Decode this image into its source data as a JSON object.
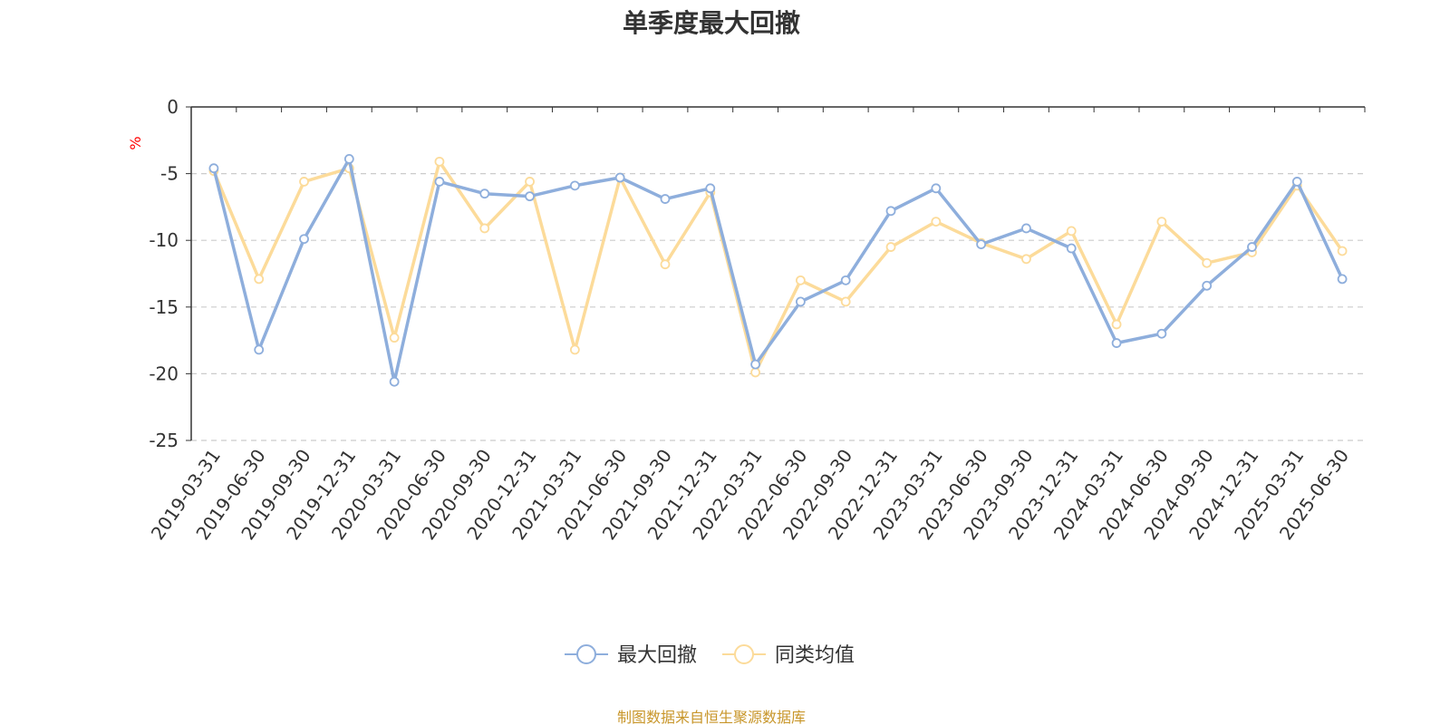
{
  "page": {
    "source_note": "制图数据来自恒生聚源数据库"
  },
  "colors": {
    "series_max_drawdown": "#8eaedc",
    "series_peer_avg": "#fcdb9a",
    "axis": "#333333",
    "grid": "#cccccc",
    "ylabel": "#ff0000",
    "source_note": "#c8962a"
  },
  "chart_data": {
    "type": "line",
    "title": "单季度最大回撤",
    "xlabel": "",
    "ylabel": "%",
    "ylim": [
      -25,
      0
    ],
    "yticks": [
      0,
      -5,
      -10,
      -15,
      -20,
      -25
    ],
    "grid": "horizontal-dashed",
    "legend_position": "bottom-center",
    "categories": [
      "2019-03-31",
      "2019-06-30",
      "2019-09-30",
      "2019-12-31",
      "2020-03-31",
      "2020-06-30",
      "2020-09-30",
      "2020-12-31",
      "2021-03-31",
      "2021-06-30",
      "2021-09-30",
      "2021-12-31",
      "2022-03-31",
      "2022-06-30",
      "2022-09-30",
      "2022-12-31",
      "2023-03-31",
      "2023-06-30",
      "2023-09-30",
      "2023-12-31",
      "2024-03-31",
      "2024-06-30",
      "2024-09-30",
      "2024-12-31",
      "2025-03-31",
      "2025-06-30"
    ],
    "series": [
      {
        "name": "最大回撤",
        "color": "#8eaedc",
        "values": [
          -4.6,
          -18.2,
          -9.9,
          -3.9,
          -20.6,
          -5.6,
          -6.5,
          -6.7,
          -5.9,
          -5.3,
          -6.9,
          -6.1,
          -19.3,
          -14.6,
          -13.0,
          -7.8,
          -6.1,
          -10.3,
          -9.1,
          -10.6,
          -17.7,
          -17.0,
          -13.4,
          -10.5,
          -5.6,
          -12.9
        ]
      },
      {
        "name": "同类均值",
        "color": "#fcdb9a",
        "values": [
          -4.8,
          -12.9,
          -5.6,
          -4.6,
          -17.3,
          -4.1,
          -9.1,
          -5.6,
          -18.2,
          -5.3,
          -11.8,
          -6.4,
          -19.9,
          -13.0,
          -14.6,
          -10.5,
          -8.6,
          -10.2,
          -11.4,
          -9.3,
          -16.3,
          -8.6,
          -11.7,
          -10.9,
          -5.9,
          -10.8
        ]
      }
    ]
  }
}
